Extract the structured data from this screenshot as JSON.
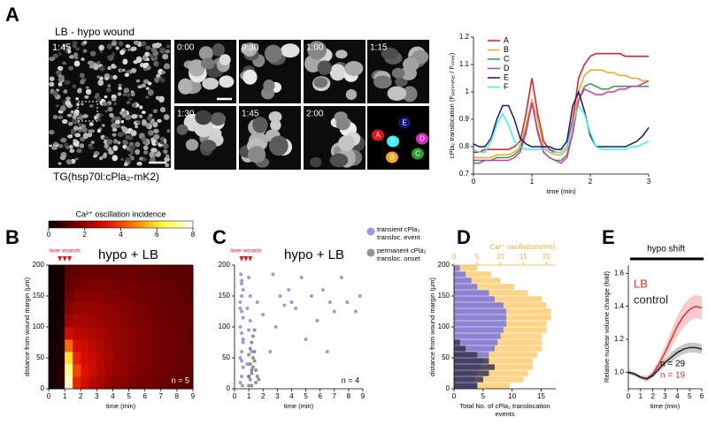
{
  "figure": {
    "panels": [
      "A",
      "B",
      "C",
      "D",
      "E"
    ],
    "images": {
      "title": "LB - hypo wound",
      "main_time": "1:45",
      "caption": "TG(hsp70l:cPla₂-mK2)",
      "frames": [
        "0:00",
        "0:30",
        "1:00",
        "1:15",
        "1:30",
        "1:45",
        "2:00"
      ],
      "cells": [
        "A",
        "B",
        "C",
        "D",
        "E",
        "F"
      ]
    }
  },
  "chart_data": [
    {
      "type": "line",
      "xlabel": "time (min)",
      "ylabel": "cPla₂ translocation (Fₚₑᵣᵢₘₑₜₑᵣ / Fᵢₙₙₑᵣ)",
      "xlim": [
        0,
        3
      ],
      "ylim": [
        0.7,
        1.2
      ],
      "xticks": [
        0,
        1,
        2,
        3
      ],
      "yticks": [
        0.7,
        0.8,
        0.9,
        1,
        1.1,
        1.2
      ],
      "legend": "upper left",
      "x": [
        0,
        0.1,
        0.2,
        0.3,
        0.4,
        0.5,
        0.6,
        0.7,
        0.8,
        0.9,
        1,
        1.1,
        1.2,
        1.3,
        1.4,
        1.5,
        1.6,
        1.7,
        1.8,
        1.9,
        2,
        2.1,
        2.2,
        2.3,
        2.4,
        2.5,
        2.6,
        2.7,
        2.8,
        2.9,
        3
      ],
      "series": [
        {
          "name": "A",
          "color": "#e8141c",
          "values": [
            0.78,
            0.78,
            0.79,
            0.79,
            0.79,
            0.79,
            0.79,
            0.8,
            0.82,
            0.92,
            1.05,
            0.92,
            0.82,
            0.79,
            0.78,
            0.78,
            0.8,
            0.9,
            1.05,
            1.1,
            1.13,
            1.14,
            1.14,
            1.14,
            1.14,
            1.14,
            1.13,
            1.13,
            1.13,
            1.13,
            1.13
          ]
        },
        {
          "name": "B",
          "color": "#f5a623",
          "values": [
            0.76,
            0.76,
            0.76,
            0.76,
            0.77,
            0.77,
            0.77,
            0.78,
            0.8,
            0.88,
            0.97,
            0.9,
            0.8,
            0.78,
            0.77,
            0.77,
            0.79,
            0.88,
            1.0,
            1.06,
            1.08,
            1.08,
            1.08,
            1.07,
            1.07,
            1.06,
            1.06,
            1.05,
            1.05,
            1.04,
            1.04
          ]
        },
        {
          "name": "C",
          "color": "#2ca02c",
          "values": [
            0.74,
            0.74,
            0.75,
            0.75,
            0.76,
            0.76,
            0.76,
            0.77,
            0.79,
            0.86,
            0.96,
            0.86,
            0.78,
            0.76,
            0.75,
            0.75,
            0.77,
            0.85,
            0.97,
            1.02,
            1.03,
            1.02,
            1.01,
            1.01,
            1.02,
            1.02,
            1.02,
            1.02,
            1.02,
            1.02,
            1.02
          ]
        },
        {
          "name": "D",
          "color": "#d62fc0",
          "values": [
            0.75,
            0.75,
            0.75,
            0.75,
            0.75,
            0.75,
            0.75,
            0.76,
            0.78,
            0.85,
            0.96,
            0.85,
            0.78,
            0.76,
            0.75,
            0.74,
            0.76,
            0.85,
            0.97,
            1.01,
            1.0,
            0.99,
            0.99,
            1.0,
            1.0,
            1.01,
            1.01,
            1.02,
            1.02,
            1.03,
            1.04
          ]
        },
        {
          "name": "E",
          "color": "#14167a",
          "values": [
            0.81,
            0.8,
            0.8,
            0.83,
            0.9,
            0.95,
            0.95,
            0.9,
            0.83,
            0.81,
            0.8,
            0.8,
            0.8,
            0.8,
            0.79,
            0.79,
            0.82,
            0.95,
            1.0,
            0.93,
            0.84,
            0.8,
            0.8,
            0.8,
            0.8,
            0.8,
            0.8,
            0.81,
            0.82,
            0.84,
            0.87
          ]
        },
        {
          "name": "F",
          "color": "#3ff0f0",
          "values": [
            0.79,
            0.78,
            0.78,
            0.82,
            0.88,
            0.92,
            0.88,
            0.82,
            0.8,
            0.79,
            0.79,
            0.79,
            0.79,
            0.78,
            0.78,
            0.78,
            0.8,
            0.88,
            0.95,
            0.92,
            0.85,
            0.8,
            0.79,
            0.79,
            0.79,
            0.79,
            0.79,
            0.8,
            0.8,
            0.81,
            0.82
          ]
        }
      ]
    },
    {
      "type": "heatmap",
      "title": "hypo + LB",
      "annotation": "laser wounds",
      "n_label": "n = 5",
      "colorbar_label": "Ca²⁺ oscillation incidence",
      "clim": [
        0,
        8
      ],
      "cticks": [
        0,
        2,
        4,
        6,
        8
      ],
      "colormap": [
        "#000000",
        "#7a0000",
        "#e01000",
        "#ff8000",
        "#ffff40",
        "#ffffff"
      ],
      "xlabel": "time (min)",
      "ylabel": "distance from wound margin (µm)",
      "xlim": [
        0,
        9
      ],
      "ylim": [
        0,
        200
      ],
      "xticks": [
        0,
        1,
        2,
        3,
        4,
        5,
        6,
        7,
        8,
        9
      ],
      "yticks": [
        0,
        50,
        100,
        150,
        200
      ],
      "wound_times": [
        0.7,
        1,
        1.3
      ],
      "wound_color": "#e8141c",
      "x_edges": [
        0,
        0.5,
        1,
        1.5,
        2,
        2.5,
        3,
        3.5,
        4,
        4.5,
        5,
        5.5,
        6,
        6.5,
        7,
        7.5,
        8,
        8.5,
        9
      ],
      "y_edges": [
        0,
        20,
        40,
        60,
        80,
        100,
        120,
        140,
        160,
        180,
        200
      ],
      "z": [
        [
          0.3,
          0.5,
          7.5,
          3.5,
          3.0,
          2.5,
          2.3,
          2.0,
          1.8,
          1.8,
          1.6,
          1.5,
          1.5,
          1.4,
          1.4,
          1.3,
          1.3,
          1.2
        ],
        [
          0.3,
          0.5,
          7.0,
          4.0,
          3.2,
          2.8,
          2.5,
          2.2,
          2.0,
          1.9,
          1.7,
          1.6,
          1.6,
          1.5,
          1.4,
          1.4,
          1.3,
          1.3
        ],
        [
          0.3,
          0.4,
          6.0,
          3.5,
          3.0,
          2.8,
          2.5,
          2.3,
          2.0,
          1.9,
          1.8,
          1.7,
          1.6,
          1.5,
          1.5,
          1.4,
          1.3,
          1.3
        ],
        [
          0.3,
          0.4,
          4.5,
          3.0,
          2.8,
          2.6,
          2.4,
          2.2,
          2.0,
          1.9,
          1.8,
          1.7,
          1.6,
          1.5,
          1.5,
          1.4,
          1.4,
          1.3
        ],
        [
          0.2,
          0.4,
          3.0,
          2.6,
          2.5,
          2.4,
          2.3,
          2.1,
          2.0,
          1.9,
          1.8,
          1.7,
          1.6,
          1.5,
          1.5,
          1.4,
          1.4,
          1.3
        ],
        [
          0.2,
          0.3,
          2.2,
          2.3,
          2.3,
          2.2,
          2.1,
          2.0,
          1.9,
          1.8,
          1.7,
          1.6,
          1.6,
          1.5,
          1.4,
          1.4,
          1.3,
          1.3
        ],
        [
          0.2,
          0.3,
          1.8,
          2.0,
          2.1,
          2.0,
          2.0,
          1.9,
          1.8,
          1.7,
          1.7,
          1.6,
          1.5,
          1.5,
          1.4,
          1.4,
          1.3,
          1.3
        ],
        [
          0.2,
          0.3,
          1.5,
          1.8,
          1.8,
          1.8,
          1.8,
          1.7,
          1.7,
          1.6,
          1.6,
          1.5,
          1.5,
          1.4,
          1.4,
          1.3,
          1.3,
          1.2
        ],
        [
          0.2,
          0.3,
          1.3,
          1.5,
          1.6,
          1.6,
          1.6,
          1.6,
          1.5,
          1.5,
          1.5,
          1.4,
          1.4,
          1.4,
          1.3,
          1.3,
          1.2,
          1.2
        ],
        [
          0.2,
          0.3,
          1.2,
          1.3,
          1.4,
          1.4,
          1.4,
          1.4,
          1.4,
          1.4,
          1.4,
          1.3,
          1.3,
          1.3,
          1.2,
          1.2,
          1.2,
          1.2
        ]
      ]
    },
    {
      "type": "scatter",
      "title": "hypo + LB",
      "annotation": "laser wounds",
      "n_label": "n = 4",
      "xlabel": "time (min)",
      "xlim": [
        0,
        9
      ],
      "ylim": [
        0,
        200
      ],
      "xticks": [
        0,
        1,
        2,
        3,
        4,
        5,
        6,
        7,
        8,
        9
      ],
      "yticks": [
        0,
        50,
        100,
        150,
        200
      ],
      "wound_times": [
        0.5,
        0.8,
        1.1
      ],
      "wound_color": "#e8141c",
      "series": [
        {
          "name": "transient cPla₂ transloc. event",
          "color": "#7b74e6",
          "x": [
            0.4,
            0.5,
            0.6,
            0.4,
            0.5,
            0.6,
            0.5,
            0.4,
            0.6,
            0.5,
            0.4,
            0.5,
            0.6,
            0.5,
            0.45,
            0.55,
            0.5,
            0.4,
            0.6,
            0.5,
            0.9,
            1.0,
            1.1,
            1.0,
            0.9,
            1.2,
            1.1,
            1.0,
            1.6,
            2.0,
            2.5,
            2.7,
            3.2,
            3.5,
            3.8,
            4.3,
            4.7,
            5.0,
            5.4,
            5.8,
            6.2,
            6.7,
            7.0,
            7.5,
            7.9,
            8.5,
            8.8,
            2.9,
            4.0,
            6.5
          ],
          "values": [
            10,
            20,
            35,
            50,
            60,
            75,
            90,
            100,
            115,
            125,
            140,
            150,
            160,
            175,
            185,
            5,
            45,
            130,
            80,
            170,
            40,
            95,
            150,
            180,
            130,
            60,
            110,
            20,
            140,
            120,
            60,
            185,
            150,
            135,
            160,
            130,
            180,
            80,
            150,
            110,
            160,
            140,
            125,
            180,
            140,
            125,
            150,
            100,
            140,
            60
          ]
        },
        {
          "name": "permanent cPla₂ transloc. onset",
          "color": "#6e6e6e",
          "x": [
            1.0,
            1.1,
            1.2,
            1.3,
            1.4,
            1.0,
            1.1,
            1.2,
            1.3,
            1.4,
            1.5,
            1.6,
            1.2,
            1.3,
            1.1,
            1.4,
            1.5,
            1.7,
            1.0,
            1.2
          ],
          "values": [
            5,
            15,
            25,
            35,
            45,
            55,
            65,
            75,
            85,
            95,
            10,
            20,
            30,
            50,
            40,
            60,
            30,
            15,
            20,
            5
          ]
        }
      ]
    },
    {
      "type": "barh",
      "xlabel": "Total No. of cPla₂ translocation events",
      "x2label": "Ca²⁺ oscillations/min",
      "x2_color": "#f2b233",
      "ylabel": "distance from wound margin (µm)",
      "xlim": [
        0,
        17.5
      ],
      "x2lim": [
        0,
        22
      ],
      "ylim": [
        0,
        200
      ],
      "xticks": [
        0,
        5,
        10,
        15
      ],
      "x2ticks": [
        0,
        5,
        10,
        15,
        20
      ],
      "yticks": [
        0,
        50,
        100,
        150,
        200
      ],
      "y_edges": [
        0,
        10,
        20,
        30,
        40,
        50,
        60,
        70,
        80,
        90,
        100,
        110,
        120,
        130,
        140,
        150,
        160,
        170,
        180,
        190,
        200
      ],
      "series": [
        {
          "color": "#fdd486",
          "axis": "x2",
          "values": [
            12,
            15,
            16,
            17,
            17,
            18,
            19,
            19,
            19,
            20,
            20,
            21,
            21,
            20,
            19,
            16,
            13,
            10,
            8,
            5
          ]
        },
        {
          "color": "#8a83d6",
          "values": [
            4,
            3.5,
            4,
            4.5,
            5,
            6,
            7,
            7.5,
            8,
            8.5,
            9,
            9,
            9,
            8.5,
            7,
            6,
            4,
            3,
            2,
            1
          ]
        },
        {
          "color": "#3a3552",
          "values": [
            4,
            5,
            6,
            7,
            6,
            4,
            2,
            1,
            0,
            0,
            0,
            0,
            0,
            0,
            0,
            0,
            0,
            0,
            0,
            0
          ]
        }
      ]
    },
    {
      "type": "line",
      "title": "hypo shift",
      "xlabel": "time (min)",
      "ylabel": "Relative nuclear volume change (fold)",
      "xlim": [
        0,
        6
      ],
      "ylim": [
        0.9,
        1.65
      ],
      "xticks": [
        0,
        1,
        2,
        3,
        4,
        5,
        6
      ],
      "yticks": [
        {
          "value": 1,
          "label": "1.0"
        },
        1.2,
        1.4,
        1.6
      ],
      "legend": "upper left",
      "x": [
        0,
        0.5,
        1,
        1.5,
        2,
        2.5,
        3,
        3.5,
        4,
        4.5,
        5,
        5.5,
        6
      ],
      "series": [
        {
          "name": "LB",
          "color": "#e0302f",
          "values": [
            1.0,
            0.99,
            0.97,
            0.96,
            0.99,
            1.05,
            1.12,
            1.2,
            1.28,
            1.34,
            1.38,
            1.4,
            1.39
          ],
          "errors": [
            0.01,
            0.01,
            0.01,
            0.02,
            0.02,
            0.03,
            0.04,
            0.05,
            0.06,
            0.07,
            0.07,
            0.07,
            0.07
          ]
        },
        {
          "name": "control",
          "color": "#222222",
          "values": [
            1.0,
            0.99,
            0.97,
            0.96,
            0.98,
            1.02,
            1.06,
            1.09,
            1.12,
            1.14,
            1.15,
            1.15,
            1.14
          ],
          "errors": [
            0.01,
            0.01,
            0.01,
            0.01,
            0.01,
            0.02,
            0.02,
            0.03,
            0.03,
            0.03,
            0.03,
            0.03,
            0.03
          ]
        }
      ],
      "annotations": [
        {
          "text": "n = 29",
          "color": "#000000"
        },
        {
          "text": "n = 19",
          "color": "#e0302f"
        }
      ]
    }
  ]
}
